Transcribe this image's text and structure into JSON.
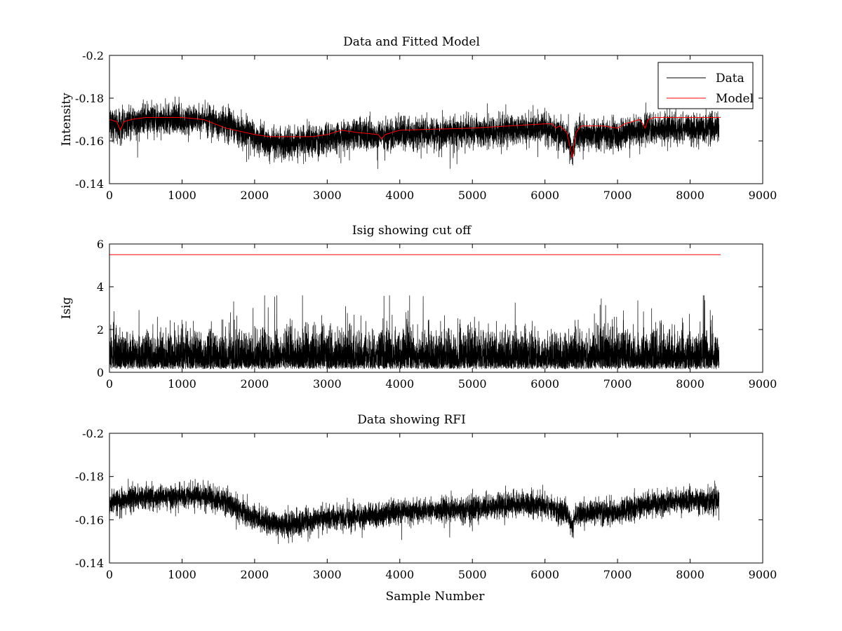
{
  "figure": {
    "xlabel": "Sample Number"
  },
  "colors": {
    "data": "#000000",
    "model": "#ff0000",
    "background": "#ffffff"
  },
  "chart_data": [
    {
      "type": "line",
      "title": "Data and Fitted Model",
      "ylabel": "Intensity",
      "xlabel": "",
      "xlim": [
        0,
        9000
      ],
      "ylim": [
        -0.2,
        -0.14
      ],
      "ydir": "reverse",
      "xticks": [
        0,
        1000,
        2000,
        3000,
        4000,
        5000,
        6000,
        7000,
        8000,
        9000
      ],
      "xtick_labels": [
        "0",
        "1000",
        "2000",
        "3000",
        "4000",
        "5000",
        "6000",
        "7000",
        "8000",
        "9000"
      ],
      "yticks": [
        -0.2,
        -0.18,
        -0.16,
        -0.14
      ],
      "ytick_labels": [
        "-0.2",
        "-0.18",
        "-0.16",
        "-0.14"
      ],
      "legend": {
        "placement": "top-right",
        "entries": [
          "Data",
          "Model"
        ]
      },
      "series": [
        {
          "name": "Data",
          "kind": "noise",
          "seed": 11,
          "n": 8400,
          "noise": 0.0035,
          "spike": 0.006,
          "spike_prob": 0.006,
          "spike_dir": "positive",
          "baseline_x": [
            0,
            150,
            200,
            500,
            1000,
            1300,
            1600,
            2000,
            2200,
            2500,
            3000,
            3300,
            3700,
            3800,
            4000,
            5000,
            6000,
            6300,
            6380,
            6420,
            6500,
            7000,
            7300,
            7500,
            8000,
            8420
          ],
          "baseline_y": [
            -0.168,
            -0.166,
            -0.168,
            -0.17,
            -0.17,
            -0.17,
            -0.168,
            -0.162,
            -0.159,
            -0.159,
            -0.161,
            -0.163,
            -0.162,
            -0.163,
            -0.163,
            -0.164,
            -0.166,
            -0.162,
            -0.155,
            -0.162,
            -0.163,
            -0.163,
            -0.165,
            -0.166,
            -0.166,
            -0.166
          ]
        },
        {
          "name": "Model",
          "kind": "line",
          "x": [
            0,
            100,
            150,
            200,
            300,
            500,
            1000,
            1300,
            1600,
            2000,
            2200,
            2500,
            2800,
            3000,
            3200,
            3400,
            3700,
            3750,
            3800,
            4000,
            5000,
            6000,
            6100,
            6150,
            6200,
            6300,
            6380,
            6400,
            6430,
            6500,
            6800,
            7000,
            7100,
            7200,
            7300,
            7350,
            7380,
            7420,
            7500,
            8000,
            8420
          ],
          "y": [
            -0.17,
            -0.169,
            -0.165,
            -0.169,
            -0.17,
            -0.171,
            -0.171,
            -0.17,
            -0.166,
            -0.163,
            -0.162,
            -0.162,
            -0.162,
            -0.163,
            -0.165,
            -0.164,
            -0.163,
            -0.161,
            -0.163,
            -0.165,
            -0.166,
            -0.168,
            -0.168,
            -0.166,
            -0.167,
            -0.164,
            -0.152,
            -0.158,
            -0.164,
            -0.167,
            -0.167,
            -0.166,
            -0.168,
            -0.169,
            -0.17,
            -0.168,
            -0.166,
            -0.17,
            -0.171,
            -0.171,
            -0.171
          ]
        }
      ]
    },
    {
      "type": "line",
      "title": "Isig showing cut off",
      "ylabel": "Isig",
      "xlabel": "",
      "xlim": [
        0,
        9000
      ],
      "ylim": [
        0,
        6
      ],
      "ydir": "normal",
      "xticks": [
        0,
        1000,
        2000,
        3000,
        4000,
        5000,
        6000,
        7000,
        8000,
        9000
      ],
      "xtick_labels": [
        "0",
        "1000",
        "2000",
        "3000",
        "4000",
        "5000",
        "6000",
        "7000",
        "8000",
        "9000"
      ],
      "yticks": [
        0,
        2,
        4,
        6
      ],
      "ytick_labels": [
        "0",
        "2",
        "4",
        "6"
      ],
      "series": [
        {
          "name": "Isig",
          "kind": "abs_noise",
          "seed": 29,
          "n": 8400,
          "noise": 0.8,
          "spike": 1.6,
          "spike_prob": 0.008,
          "spike_max": 3.6
        },
        {
          "name": "Cutoff",
          "kind": "line",
          "x": [
            0,
            8420
          ],
          "y": [
            5.5,
            5.5
          ]
        }
      ]
    },
    {
      "type": "line",
      "title": "Data showing RFI",
      "ylabel": "",
      "xlabel": "Sample Number",
      "xlim": [
        0,
        9000
      ],
      "ylim": [
        -0.2,
        -0.14
      ],
      "ydir": "reverse",
      "xticks": [
        0,
        1000,
        2000,
        3000,
        4000,
        5000,
        6000,
        7000,
        8000,
        9000
      ],
      "xtick_labels": [
        "0",
        "1000",
        "2000",
        "3000",
        "4000",
        "5000",
        "6000",
        "7000",
        "8000",
        "9000"
      ],
      "yticks": [
        -0.2,
        -0.18,
        -0.16,
        -0.14
      ],
      "ytick_labels": [
        "-0.2",
        "-0.18",
        "-0.16",
        "-0.14"
      ],
      "series": [
        {
          "name": "Data",
          "kind": "noise",
          "seed": 47,
          "n": 8400,
          "noise": 0.0028,
          "spike": 0.005,
          "spike_prob": 0.005,
          "spike_dir": "positive",
          "baseline_x": [
            0,
            300,
            1000,
            1300,
            1600,
            2000,
            2200,
            2500,
            3000,
            3700,
            4000,
            5000,
            5500,
            6000,
            6300,
            6380,
            6420,
            6500,
            7000,
            7300,
            7500,
            8000,
            8420
          ],
          "baseline_y": [
            -0.168,
            -0.17,
            -0.171,
            -0.171,
            -0.168,
            -0.161,
            -0.158,
            -0.158,
            -0.161,
            -0.162,
            -0.164,
            -0.165,
            -0.167,
            -0.167,
            -0.163,
            -0.157,
            -0.162,
            -0.163,
            -0.164,
            -0.166,
            -0.168,
            -0.169,
            -0.169
          ]
        }
      ]
    }
  ]
}
